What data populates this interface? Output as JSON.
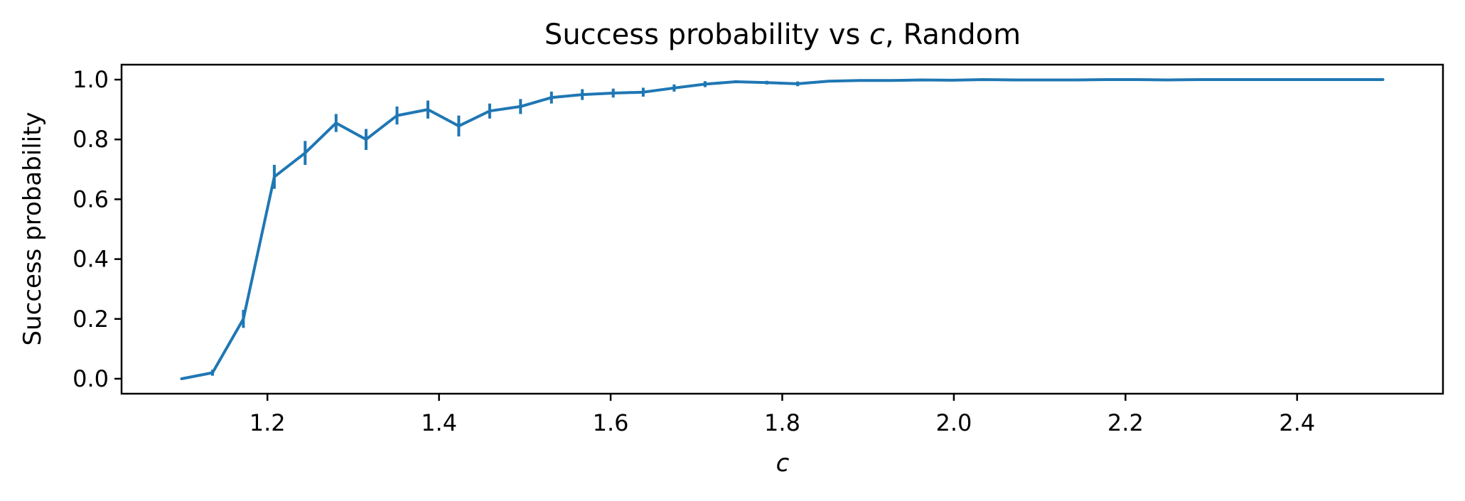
{
  "chart_data": {
    "type": "line",
    "title": "Success probability vs c, Random",
    "title_prefix": "Success probability vs ",
    "title_var": "c",
    "title_suffix": ", Random",
    "xlabel": "c",
    "ylabel": "Success probability",
    "xlim": [
      1.03,
      2.57
    ],
    "ylim": [
      -0.05,
      1.05
    ],
    "xticks": [
      1.2,
      1.4,
      1.6,
      1.8,
      2.0,
      2.2,
      2.4
    ],
    "xtick_labels": [
      "1.2",
      "1.4",
      "1.6",
      "1.8",
      "2.0",
      "2.2",
      "2.4"
    ],
    "yticks": [
      0.0,
      0.2,
      0.4,
      0.6,
      0.8,
      1.0
    ],
    "ytick_labels": [
      "0.0",
      "0.2",
      "0.4",
      "0.6",
      "0.8",
      "1.0"
    ],
    "grid": false,
    "legend": "none",
    "series": [
      {
        "color": "#1f77b4",
        "x": [
          1.1,
          1.136,
          1.172,
          1.208,
          1.244,
          1.28,
          1.315,
          1.351,
          1.387,
          1.423,
          1.459,
          1.495,
          1.531,
          1.567,
          1.603,
          1.638,
          1.674,
          1.71,
          1.746,
          1.782,
          1.818,
          1.854,
          1.89,
          1.926,
          1.962,
          1.998,
          2.034,
          2.07,
          2.106,
          2.142,
          2.178,
          2.214,
          2.25,
          2.286,
          2.322,
          2.358,
          2.394,
          2.43,
          2.466,
          2.5
        ],
        "y": [
          0.0,
          0.02,
          0.2,
          0.675,
          0.755,
          0.855,
          0.8,
          0.88,
          0.9,
          0.845,
          0.895,
          0.91,
          0.94,
          0.95,
          0.955,
          0.958,
          0.972,
          0.985,
          0.993,
          0.99,
          0.986,
          0.995,
          0.997,
          0.997,
          0.999,
          0.998,
          1.0,
          0.999,
          0.999,
          0.999,
          1.0,
          1.0,
          0.999,
          1.0,
          1.0,
          1.0,
          1.0,
          1.0,
          1.0,
          1.0
        ],
        "yerr": [
          0.0,
          0.01,
          0.03,
          0.04,
          0.04,
          0.03,
          0.035,
          0.03,
          0.03,
          0.035,
          0.025,
          0.025,
          0.02,
          0.018,
          0.015,
          0.015,
          0.012,
          0.01,
          0.005,
          0.006,
          0.008,
          0.004,
          0.003,
          0.003,
          0.002,
          0.002,
          0.0,
          0.001,
          0.001,
          0.001,
          0.0,
          0.0,
          0.001,
          0.0,
          0.0,
          0.0,
          0.0,
          0.0,
          0.0,
          0.0
        ]
      }
    ]
  }
}
